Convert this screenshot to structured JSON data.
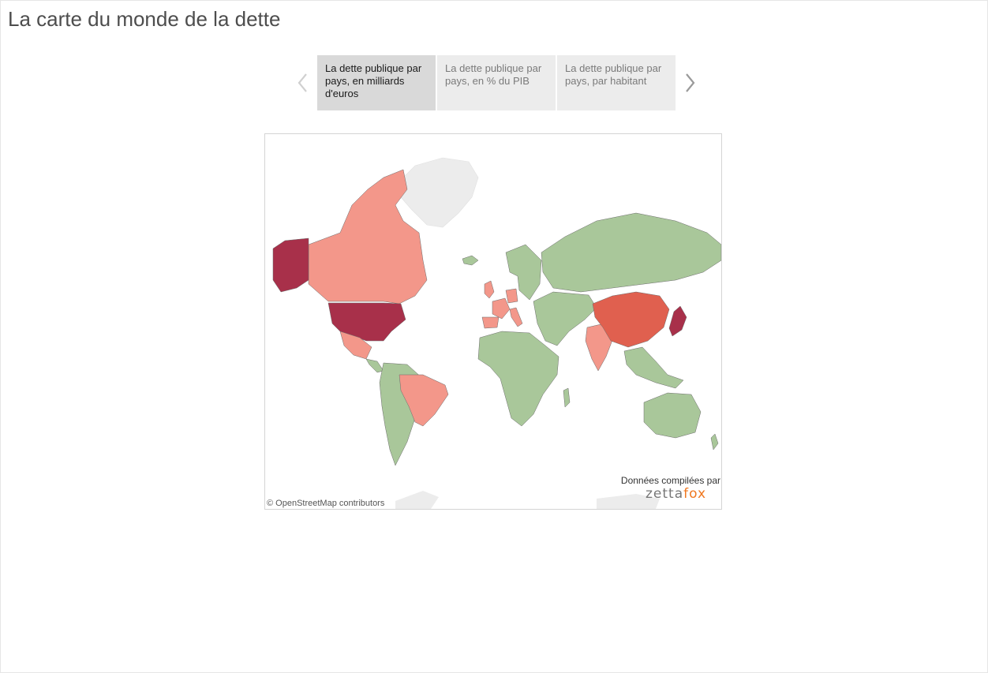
{
  "page": {
    "title": "La carte du monde de la dette"
  },
  "story_nav": {
    "prev_icon": "chevron-left-icon",
    "next_icon": "chevron-right-icon",
    "tabs": [
      {
        "label": "La dette publique par pays, en milliards d'euros",
        "active": true
      },
      {
        "label": "La dette publique par pays, en % du PIB",
        "active": false
      },
      {
        "label": "La dette publique par pays, par habitant",
        "active": false
      }
    ]
  },
  "map": {
    "credit": "© OpenStreetMap contributors",
    "compiled_by": "Données compilées par",
    "brand": {
      "prefix": "zetta",
      "suffix": "fox"
    },
    "colors": {
      "low": "#a9c79a",
      "mid_low": "#f3978a",
      "mid_high": "#e0604f",
      "high": "#a8304a",
      "no_data": "#ececec",
      "border": "#6b6b6b"
    },
    "country_tiers": {
      "high": [
        "United States"
      ],
      "mid_high": [
        "China",
        "Japan"
      ],
      "mid_low": [
        "Canada",
        "Mexico",
        "Brazil",
        "India",
        "United Kingdom",
        "France",
        "Germany",
        "Italy",
        "Spain"
      ],
      "low": [
        "Russia",
        "Africa",
        "Australia",
        "South America (other)",
        "Middle East",
        "Central Asia",
        "Southeast Asia"
      ],
      "no_data": [
        "Greenland",
        "Antarctica"
      ]
    }
  }
}
